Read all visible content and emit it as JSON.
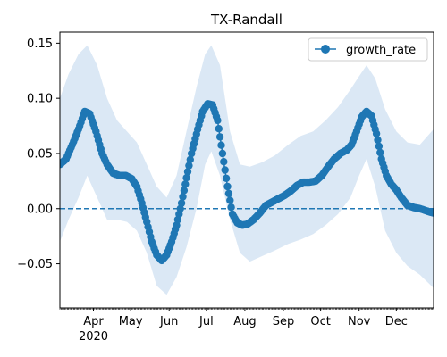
{
  "chart_data": {
    "type": "line",
    "title": "TX-Randall",
    "xlabel": "",
    "ylabel": "",
    "x_range": [
      "2020-03-05",
      "2020-12-31"
    ],
    "ylim": [
      -0.09,
      0.16
    ],
    "y_ticks": [
      -0.05,
      0.0,
      0.05,
      0.1,
      0.15
    ],
    "y_tick_labels": [
      "−0.05",
      "0.00",
      "0.05",
      "0.10",
      "0.15"
    ],
    "x_ticks": [
      {
        "date": "2020-04-01",
        "label": "Apr"
      },
      {
        "date": "2020-05-01",
        "label": "May"
      },
      {
        "date": "2020-06-01",
        "label": "Jun"
      },
      {
        "date": "2020-07-01",
        "label": "Jul"
      },
      {
        "date": "2020-08-01",
        "label": "Aug"
      },
      {
        "date": "2020-09-01",
        "label": "Sep"
      },
      {
        "date": "2020-10-01",
        "label": "Oct"
      },
      {
        "date": "2020-11-01",
        "label": "Nov"
      },
      {
        "date": "2020-12-01",
        "label": "Dec"
      }
    ],
    "x_year_label": "2020",
    "grid": false,
    "legend": {
      "position": "top-right",
      "entries": [
        "growth_rate"
      ]
    },
    "series": [
      {
        "name": "growth_rate",
        "color": "#1f77b4",
        "marker": "circle",
        "points": [
          [
            "2020-03-05",
            0.04
          ],
          [
            "2020-03-10",
            0.045
          ],
          [
            "2020-03-15",
            0.058
          ],
          [
            "2020-03-20",
            0.072
          ],
          [
            "2020-03-25",
            0.088
          ],
          [
            "2020-03-29",
            0.086
          ],
          [
            "2020-04-03",
            0.07
          ],
          [
            "2020-04-08",
            0.05
          ],
          [
            "2020-04-12",
            0.04
          ],
          [
            "2020-04-17",
            0.032
          ],
          [
            "2020-04-22",
            0.03
          ],
          [
            "2020-04-27",
            0.03
          ],
          [
            "2020-05-02",
            0.027
          ],
          [
            "2020-05-06",
            0.02
          ],
          [
            "2020-05-10",
            0.005
          ],
          [
            "2020-05-14",
            -0.012
          ],
          [
            "2020-05-18",
            -0.03
          ],
          [
            "2020-05-22",
            -0.042
          ],
          [
            "2020-05-26",
            -0.047
          ],
          [
            "2020-05-30",
            -0.042
          ],
          [
            "2020-06-03",
            -0.03
          ],
          [
            "2020-06-07",
            -0.015
          ],
          [
            "2020-06-11",
            0.005
          ],
          [
            "2020-06-15",
            0.028
          ],
          [
            "2020-06-19",
            0.05
          ],
          [
            "2020-06-24",
            0.072
          ],
          [
            "2020-06-28",
            0.088
          ],
          [
            "2020-07-02",
            0.095
          ],
          [
            "2020-07-06",
            0.094
          ],
          [
            "2020-07-10",
            0.08
          ],
          [
            "2020-07-14",
            0.05
          ],
          [
            "2020-07-18",
            0.02
          ],
          [
            "2020-07-22",
            -0.005
          ],
          [
            "2020-07-26",
            -0.013
          ],
          [
            "2020-07-30",
            -0.015
          ],
          [
            "2020-08-03",
            -0.014
          ],
          [
            "2020-08-08",
            -0.01
          ],
          [
            "2020-08-13",
            -0.004
          ],
          [
            "2020-08-18",
            0.003
          ],
          [
            "2020-08-23",
            0.006
          ],
          [
            "2020-08-28",
            0.009
          ],
          [
            "2020-09-02",
            0.012
          ],
          [
            "2020-09-07",
            0.016
          ],
          [
            "2020-09-12",
            0.021
          ],
          [
            "2020-09-17",
            0.024
          ],
          [
            "2020-09-22",
            0.024
          ],
          [
            "2020-09-27",
            0.025
          ],
          [
            "2020-10-02",
            0.03
          ],
          [
            "2020-10-07",
            0.038
          ],
          [
            "2020-10-12",
            0.045
          ],
          [
            "2020-10-17",
            0.05
          ],
          [
            "2020-10-22",
            0.053
          ],
          [
            "2020-10-26",
            0.058
          ],
          [
            "2020-10-30",
            0.07
          ],
          [
            "2020-11-03",
            0.083
          ],
          [
            "2020-11-07",
            0.088
          ],
          [
            "2020-11-11",
            0.084
          ],
          [
            "2020-11-15",
            0.068
          ],
          [
            "2020-11-19",
            0.045
          ],
          [
            "2020-11-23",
            0.03
          ],
          [
            "2020-11-27",
            0.022
          ],
          [
            "2020-12-01",
            0.017
          ],
          [
            "2020-12-05",
            0.01
          ],
          [
            "2020-12-10",
            0.003
          ],
          [
            "2020-12-15",
            0.001
          ],
          [
            "2020-12-20",
            0.0
          ],
          [
            "2020-12-25",
            -0.002
          ],
          [
            "2020-12-31",
            -0.004
          ]
        ]
      },
      {
        "name": "",
        "role": "reference",
        "color": "#1f77b4",
        "style": "dashed",
        "value": 0.0
      }
    ],
    "band": {
      "color": "#dbe8f5",
      "upper": [
        [
          "2020-03-05",
          0.1
        ],
        [
          "2020-03-12",
          0.122
        ],
        [
          "2020-03-20",
          0.14
        ],
        [
          "2020-03-27",
          0.148
        ],
        [
          "2020-04-04",
          0.13
        ],
        [
          "2020-04-12",
          0.1
        ],
        [
          "2020-04-20",
          0.08
        ],
        [
          "2020-04-28",
          0.07
        ],
        [
          "2020-05-06",
          0.06
        ],
        [
          "2020-05-14",
          0.04
        ],
        [
          "2020-05-22",
          0.02
        ],
        [
          "2020-05-30",
          0.01
        ],
        [
          "2020-06-07",
          0.03
        ],
        [
          "2020-06-15",
          0.07
        ],
        [
          "2020-06-23",
          0.11
        ],
        [
          "2020-06-30",
          0.14
        ],
        [
          "2020-07-05",
          0.148
        ],
        [
          "2020-07-12",
          0.13
        ],
        [
          "2020-07-20",
          0.07
        ],
        [
          "2020-07-28",
          0.04
        ],
        [
          "2020-08-05",
          0.038
        ],
        [
          "2020-08-15",
          0.042
        ],
        [
          "2020-08-25",
          0.048
        ],
        [
          "2020-09-05",
          0.058
        ],
        [
          "2020-09-15",
          0.066
        ],
        [
          "2020-09-25",
          0.07
        ],
        [
          "2020-10-05",
          0.08
        ],
        [
          "2020-10-15",
          0.092
        ],
        [
          "2020-10-25",
          0.108
        ],
        [
          "2020-11-01",
          0.12
        ],
        [
          "2020-11-07",
          0.13
        ],
        [
          "2020-11-14",
          0.118
        ],
        [
          "2020-11-22",
          0.09
        ],
        [
          "2020-12-01",
          0.07
        ],
        [
          "2020-12-10",
          0.06
        ],
        [
          "2020-12-20",
          0.058
        ],
        [
          "2020-12-31",
          0.072
        ]
      ],
      "lower": [
        [
          "2020-03-05",
          -0.03
        ],
        [
          "2020-03-12",
          -0.01
        ],
        [
          "2020-03-20",
          0.01
        ],
        [
          "2020-03-27",
          0.03
        ],
        [
          "2020-04-04",
          0.01
        ],
        [
          "2020-04-12",
          -0.01
        ],
        [
          "2020-04-20",
          -0.01
        ],
        [
          "2020-04-28",
          -0.012
        ],
        [
          "2020-05-06",
          -0.02
        ],
        [
          "2020-05-14",
          -0.04
        ],
        [
          "2020-05-22",
          -0.07
        ],
        [
          "2020-05-30",
          -0.078
        ],
        [
          "2020-06-07",
          -0.062
        ],
        [
          "2020-06-15",
          -0.035
        ],
        [
          "2020-06-23",
          0.0
        ],
        [
          "2020-06-30",
          0.04
        ],
        [
          "2020-07-05",
          0.052
        ],
        [
          "2020-07-12",
          0.03
        ],
        [
          "2020-07-20",
          -0.01
        ],
        [
          "2020-07-28",
          -0.04
        ],
        [
          "2020-08-05",
          -0.048
        ],
        [
          "2020-08-15",
          -0.043
        ],
        [
          "2020-08-25",
          -0.038
        ],
        [
          "2020-09-05",
          -0.032
        ],
        [
          "2020-09-15",
          -0.028
        ],
        [
          "2020-09-25",
          -0.023
        ],
        [
          "2020-10-05",
          -0.015
        ],
        [
          "2020-10-15",
          -0.005
        ],
        [
          "2020-10-25",
          0.01
        ],
        [
          "2020-11-01",
          0.03
        ],
        [
          "2020-11-07",
          0.045
        ],
        [
          "2020-11-14",
          0.02
        ],
        [
          "2020-11-22",
          -0.02
        ],
        [
          "2020-12-01",
          -0.04
        ],
        [
          "2020-12-10",
          -0.052
        ],
        [
          "2020-12-20",
          -0.06
        ],
        [
          "2020-12-31",
          -0.072
        ]
      ]
    }
  }
}
